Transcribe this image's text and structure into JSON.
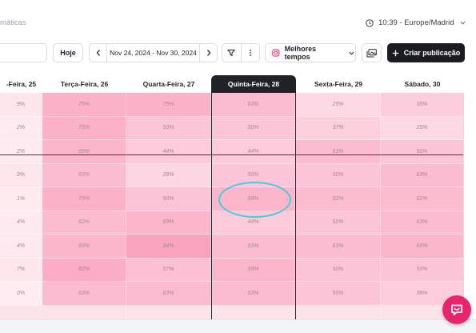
{
  "breadcrumb": "máticas",
  "timezone": {
    "label": "10:39 - Europe/Madrid"
  },
  "toolbar": {
    "today_label": "Hoje",
    "date_range": "Nov 24, 2024 - Nov 30, 2024",
    "best_times_label": "Melhores tempos",
    "create_label": "Criar publicação"
  },
  "days": [
    {
      "label": "-Feira, 25",
      "active": false
    },
    {
      "label": "Terça-Feira, 26",
      "active": false
    },
    {
      "label": "Quarta-Feira, 27",
      "active": false
    },
    {
      "label": "Quinta-Feira, 28",
      "active": true
    },
    {
      "label": "Sexta-Feira, 29",
      "active": false
    },
    {
      "label": "Sábado, 30",
      "active": false
    }
  ],
  "heatmap": [
    [
      "9%",
      "75%",
      "75%",
      "63%",
      "25%",
      "38%"
    ],
    [
      "2%",
      "75%",
      "50%",
      "50%",
      "37%",
      "25%"
    ],
    [
      "2%",
      "69%",
      "44%",
      "44%",
      "63%",
      "50%"
    ],
    [
      "9%",
      "63%",
      "28%",
      "50%",
      "50%",
      "63%"
    ],
    [
      "1%",
      "75%",
      "50%",
      "69%",
      "62%",
      "62%"
    ],
    [
      "4%",
      "62%",
      "69%",
      "44%",
      "50%",
      "63%"
    ],
    [
      "4%",
      "69%",
      "94%",
      "63%",
      "63%",
      "69%"
    ],
    [
      "7%",
      "82%",
      "57%",
      "69%",
      "50%",
      "50%"
    ],
    [
      "0%",
      "63%",
      "63%",
      "63%",
      "50%",
      "38%"
    ],
    [
      "",
      "",
      "",
      "",
      "",
      ""
    ]
  ],
  "colors": {
    "accent_dark": "#1a1c20",
    "highlight_ring": "#3fcfe0",
    "help_button": "#e8246a"
  },
  "icons": {
    "clock": "clock-icon",
    "chevron": "chevron-down-icon",
    "filter": "filter-icon",
    "more": "more-vertical-icon",
    "instagram": "instagram-icon",
    "images": "images-icon",
    "plus": "plus-icon",
    "help": "help-chat-icon"
  }
}
